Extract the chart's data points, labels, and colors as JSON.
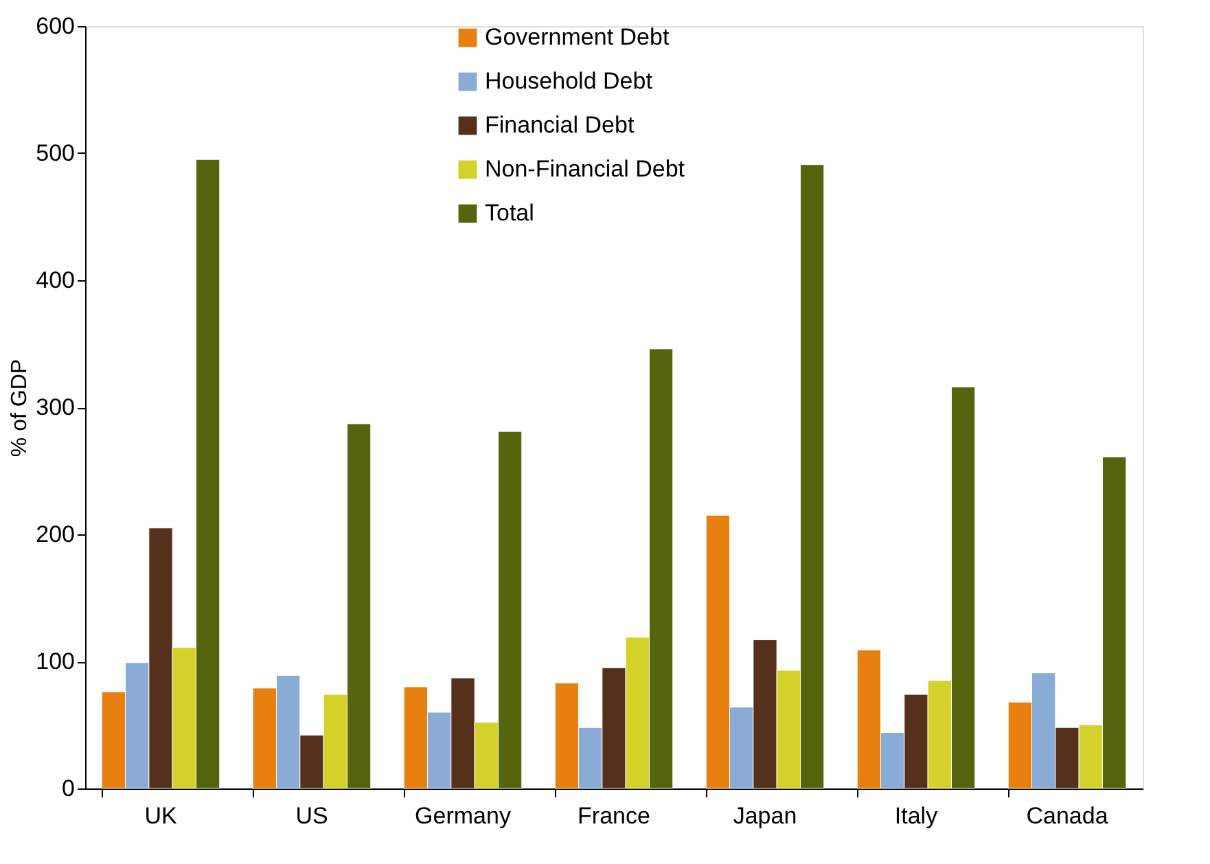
{
  "chart_data": {
    "type": "bar",
    "ylabel": "% of GDP",
    "categories": [
      "UK",
      "US",
      "Germany",
      "France",
      "Japan",
      "Italy",
      "Canada"
    ],
    "series": [
      {
        "name": "Government Debt",
        "color": "#e8800f",
        "values": [
          76,
          79,
          80,
          83,
          215,
          109,
          68
        ]
      },
      {
        "name": "Household Debt",
        "color": "#8aabd6",
        "values": [
          99,
          89,
          60,
          48,
          64,
          44,
          91
        ]
      },
      {
        "name": "Financial Debt",
        "color": "#55301b",
        "values": [
          205,
          42,
          87,
          95,
          117,
          74,
          48
        ]
      },
      {
        "name": "Non-Financial Debt",
        "color": "#d4d22a",
        "values": [
          111,
          74,
          52,
          119,
          93,
          85,
          50
        ]
      },
      {
        "name": "Total",
        "color": "#55650e",
        "values": [
          495,
          287,
          281,
          346,
          491,
          316,
          261
        ]
      }
    ],
    "ylim": [
      0,
      600
    ],
    "yticks": [
      0,
      100,
      200,
      300,
      400,
      500,
      600
    ],
    "grid": false,
    "legend": "top"
  }
}
